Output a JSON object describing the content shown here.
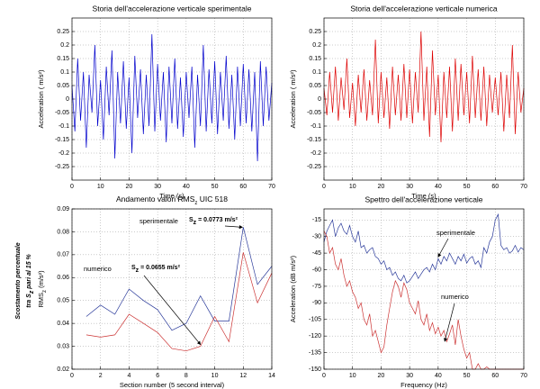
{
  "side_note": [
    "Scostamento percentuale",
    "tra S",
    "z",
    " pari al 15 %"
  ],
  "chart_data": [
    {
      "type": "line",
      "title": "Storia dell'accelerazione verticale sperimentale",
      "xlabel": "Time (s)",
      "ylabel": "Acceleration ( m/s²)",
      "color": "#0000cc",
      "grid": true,
      "xlim": [
        0,
        70
      ],
      "xticks": [
        0,
        10,
        20,
        30,
        40,
        50,
        60,
        70
      ],
      "ylim": [
        -0.3,
        0.3
      ],
      "yticks": [
        -0.25,
        -0.2,
        -0.15,
        -0.1,
        -0.05,
        0,
        0.05,
        0.1,
        0.15,
        0.2,
        0.25
      ],
      "x": [
        0,
        1,
        2,
        3,
        4,
        5,
        6,
        7,
        8,
        9,
        10,
        11,
        12,
        13,
        14,
        15,
        16,
        17,
        18,
        19,
        20,
        21,
        22,
        23,
        24,
        25,
        26,
        27,
        28,
        29,
        30,
        31,
        32,
        33,
        34,
        35,
        36,
        37,
        38,
        39,
        40,
        41,
        42,
        43,
        44,
        45,
        46,
        47,
        48,
        49,
        50,
        51,
        52,
        53,
        54,
        55,
        56,
        57,
        58,
        59,
        60,
        61,
        62,
        63,
        64,
        65,
        66,
        67,
        68,
        69,
        70
      ],
      "values": [
        0.05,
        -0.12,
        0.15,
        -0.08,
        0.1,
        -0.18,
        0.09,
        -0.05,
        0.2,
        -0.1,
        0.07,
        -0.15,
        0.12,
        -0.06,
        0.18,
        -0.22,
        0.1,
        -0.09,
        0.14,
        -0.11,
        0.08,
        -0.2,
        0.16,
        -0.07,
        0.11,
        -0.13,
        0.09,
        -0.1,
        0.24,
        -0.12,
        0.13,
        -0.08,
        0.1,
        -0.16,
        0.12,
        -0.09,
        0.15,
        -0.11,
        0.08,
        -0.14,
        0.1,
        -0.07,
        0.12,
        -0.18,
        0.09,
        -0.1,
        0.2,
        -0.12,
        0.11,
        -0.09,
        0.14,
        -0.13,
        0.1,
        -0.08,
        0.16,
        -0.11,
        0.09,
        -0.15,
        0.12,
        -0.1,
        0.13,
        -0.09,
        0.11,
        -0.12,
        0.1,
        -0.23,
        0.14,
        -0.1,
        0.12,
        -0.08,
        0.06
      ]
    },
    {
      "type": "line",
      "title": "Storia dell'accelerazione verticale numerica",
      "xlabel": "Time (s)",
      "ylabel": "Acceleration ( m/s²)",
      "color": "#dd0000",
      "grid": true,
      "xlim": [
        0,
        70
      ],
      "xticks": [
        0,
        10,
        20,
        30,
        40,
        50,
        60,
        70
      ],
      "ylim": [
        -0.3,
        0.3
      ],
      "yticks": [
        -0.25,
        -0.2,
        -0.15,
        -0.1,
        -0.05,
        0,
        0.05,
        0.1,
        0.15,
        0.2,
        0.25
      ],
      "x": [
        0,
        1,
        2,
        3,
        4,
        5,
        6,
        7,
        8,
        9,
        10,
        11,
        12,
        13,
        14,
        15,
        16,
        17,
        18,
        19,
        20,
        21,
        22,
        23,
        24,
        25,
        26,
        27,
        28,
        29,
        30,
        31,
        32,
        33,
        34,
        35,
        36,
        37,
        38,
        39,
        40,
        41,
        42,
        43,
        44,
        45,
        46,
        47,
        48,
        49,
        50,
        51,
        52,
        53,
        54,
        55,
        56,
        57,
        58,
        59,
        60,
        61,
        62,
        63,
        64,
        65,
        66,
        67,
        68,
        69,
        70
      ],
      "values": [
        0.04,
        -0.06,
        0.1,
        -0.05,
        0.12,
        -0.08,
        0.08,
        -0.04,
        0.15,
        -0.07,
        0.06,
        -0.1,
        0.09,
        -0.05,
        0.11,
        -0.08,
        0.07,
        -0.06,
        0.22,
        -0.09,
        0.1,
        -0.07,
        0.08,
        -0.11,
        0.12,
        -0.06,
        0.09,
        -0.08,
        0.13,
        -0.07,
        0.11,
        -0.09,
        0.1,
        -0.05,
        0.25,
        -0.08,
        0.12,
        -0.14,
        0.18,
        -0.06,
        0.09,
        -0.16,
        0.1,
        -0.07,
        0.12,
        -0.12,
        0.15,
        -0.08,
        0.13,
        -0.06,
        0.1,
        -0.09,
        0.16,
        -0.07,
        0.11,
        -0.08,
        0.12,
        -0.1,
        0.09,
        -0.05,
        0.08,
        -0.06,
        0.1,
        -0.12,
        0.09,
        -0.07,
        0.2,
        -0.13,
        0.1,
        -0.05,
        0.04
      ]
    },
    {
      "type": "line",
      "title": [
        "Andamento valori RMS",
        "z",
        " UIC 518"
      ],
      "xlabel": "Section number (5 second interval)",
      "ylabel": [
        "RMS",
        "z",
        " (m/s²)"
      ],
      "grid": true,
      "xlim": [
        0,
        14
      ],
      "xticks": [
        0,
        2,
        4,
        6,
        8,
        10,
        12,
        14
      ],
      "ylim": [
        0.02,
        0.09
      ],
      "yticks": [
        0.02,
        0.03,
        0.04,
        0.05,
        0.06,
        0.07,
        0.08,
        0.09
      ],
      "x": [
        1,
        2,
        3,
        4,
        5,
        6,
        7,
        8,
        9,
        10,
        11,
        12,
        13,
        14
      ],
      "series": [
        {
          "name": "sperimentale",
          "color": "#2a3a9a",
          "values": [
            0.043,
            0.048,
            0.044,
            0.055,
            0.05,
            0.046,
            0.037,
            0.04,
            0.052,
            0.041,
            0.041,
            0.082,
            0.057,
            0.065
          ]
        },
        {
          "name": "numerico",
          "color": "#cc3333",
          "values": [
            0.035,
            0.034,
            0.035,
            0.044,
            0.04,
            0.036,
            0.029,
            0.028,
            0.03,
            0.043,
            0.032,
            0.071,
            0.049,
            0.062
          ]
        }
      ],
      "annotations": [
        [
          "S",
          "z",
          " = 0.0773 m/s²"
        ],
        [
          "S",
          "z",
          " = 0.0655 m/s²"
        ]
      ]
    },
    {
      "type": "line",
      "title": "Spettro dell'accelerazione verticale",
      "xlabel": "Frequency (Hz)",
      "ylabel": "Acceleration (dB m/s²)",
      "grid": true,
      "xlim": [
        0,
        70
      ],
      "xticks": [
        0,
        10,
        20,
        30,
        40,
        50,
        60,
        70
      ],
      "ylim": [
        -150,
        -5
      ],
      "yticks": [
        -150,
        -135,
        -120,
        -105,
        -90,
        -75,
        -60,
        -45,
        -30,
        -15
      ],
      "x": [
        0,
        1,
        2,
        3,
        4,
        5,
        6,
        7,
        8,
        9,
        10,
        11,
        12,
        13,
        14,
        15,
        16,
        17,
        18,
        19,
        20,
        21,
        22,
        23,
        24,
        25,
        26,
        27,
        28,
        29,
        30,
        31,
        32,
        33,
        34,
        35,
        36,
        37,
        38,
        39,
        40,
        41,
        42,
        43,
        44,
        45,
        46,
        47,
        48,
        49,
        50,
        51,
        52,
        53,
        54,
        55,
        56,
        57,
        58,
        59,
        60,
        61,
        62,
        63,
        64,
        65,
        66,
        67,
        68,
        69,
        70
      ],
      "series": [
        {
          "name": "sperimentale",
          "color": "#2a3a9a",
          "values": [
            -35,
            -25,
            -20,
            -15,
            -30,
            -22,
            -18,
            -25,
            -28,
            -20,
            -30,
            -35,
            -25,
            -40,
            -38,
            -45,
            -42,
            -40,
            -48,
            -50,
            -55,
            -52,
            -60,
            -58,
            -65,
            -62,
            -68,
            -70,
            -65,
            -72,
            -70,
            -66,
            -62,
            -68,
            -64,
            -60,
            -58,
            -62,
            -55,
            -60,
            -50,
            -55,
            -48,
            -52,
            -45,
            -50,
            -55,
            -48,
            -52,
            -46,
            -54,
            -50,
            -48,
            -55,
            -52,
            -58,
            -40,
            -45,
            -35,
            -30,
            -15,
            -10,
            -38,
            -42,
            -40,
            -45,
            -43,
            -38,
            -44,
            -40,
            -42
          ]
        },
        {
          "name": "numerico",
          "color": "#cc3333",
          "values": [
            -25,
            -30,
            -45,
            -40,
            -55,
            -60,
            -50,
            -65,
            -75,
            -70,
            -80,
            -85,
            -95,
            -90,
            -105,
            -110,
            -100,
            -120,
            -115,
            -125,
            -135,
            -130,
            -110,
            -95,
            -80,
            -70,
            -75,
            -85,
            -72,
            -78,
            -90,
            -95,
            -100,
            -88,
            -105,
            -110,
            -100,
            -115,
            -108,
            -118,
            -112,
            -120,
            -115,
            -125,
            -118,
            -110,
            -128,
            -105,
            -120,
            -132,
            -140,
            -135,
            -150,
            -150,
            -145,
            -150,
            -150,
            -148,
            -150,
            -150,
            -150,
            -150,
            -150,
            -150,
            -150,
            -150,
            -150,
            -150,
            -150,
            -150,
            -150
          ]
        }
      ]
    }
  ]
}
